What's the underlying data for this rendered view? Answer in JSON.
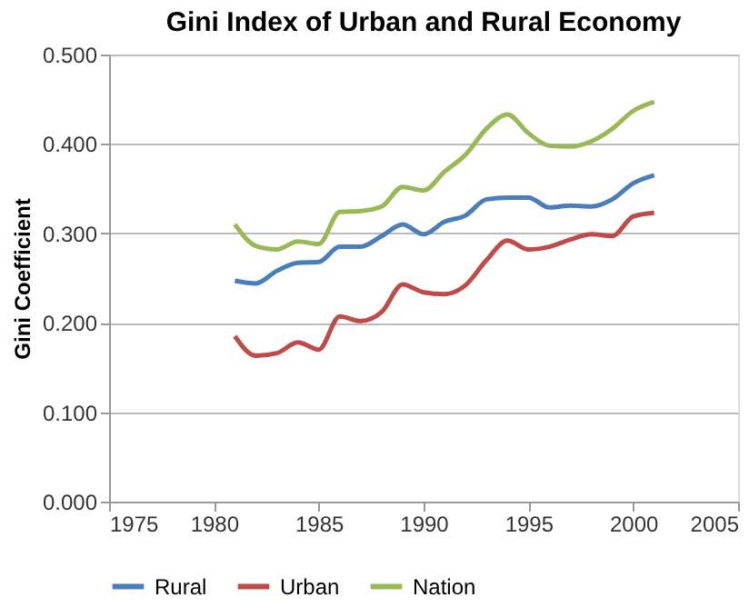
{
  "chart_data": {
    "type": "line",
    "title": "Gini Index of Urban and Rural Economy",
    "ylabel": "Gini Coefficient",
    "x": [
      1981,
      1982,
      1983,
      1984,
      1985,
      1986,
      1987,
      1988,
      1989,
      1990,
      1991,
      1992,
      1993,
      1994,
      1995,
      1996,
      1997,
      1998,
      1999,
      2000,
      2001
    ],
    "series": [
      {
        "name": "Rural",
        "color": "#4a7ebb",
        "values": [
          0.247,
          0.244,
          0.258,
          0.267,
          0.268,
          0.285,
          0.285,
          0.297,
          0.31,
          0.299,
          0.313,
          0.32,
          0.338,
          0.34,
          0.34,
          0.329,
          0.331,
          0.33,
          0.338,
          0.356,
          0.365
        ]
      },
      {
        "name": "Urban",
        "color": "#be4b48",
        "values": [
          0.185,
          0.163,
          0.166,
          0.178,
          0.17,
          0.207,
          0.202,
          0.212,
          0.243,
          0.234,
          0.232,
          0.242,
          0.27,
          0.292,
          0.282,
          0.285,
          0.293,
          0.299,
          0.297,
          0.319,
          0.323
        ]
      },
      {
        "name": "Nation",
        "color": "#98b954",
        "values": [
          0.31,
          0.286,
          0.282,
          0.291,
          0.288,
          0.324,
          0.325,
          0.33,
          0.352,
          0.348,
          0.369,
          0.388,
          0.417,
          0.433,
          0.412,
          0.398,
          0.397,
          0.403,
          0.417,
          0.437,
          0.447
        ]
      }
    ],
    "xlim": [
      1975,
      2005
    ],
    "xticks": [
      1975,
      1980,
      1985,
      1990,
      1995,
      2000,
      2005
    ],
    "ylim": [
      0,
      0.5
    ],
    "yticks": [
      {
        "value": 0,
        "label": "0.000"
      },
      {
        "value": 0.1,
        "label": "0.100"
      },
      {
        "value": 0.2,
        "label": "0.200"
      },
      {
        "value": 0.3,
        "label": "0.300"
      },
      {
        "value": 0.4,
        "label": "0.400"
      },
      {
        "value": 0.5,
        "label": "0.500"
      }
    ],
    "grid": "y",
    "legend": "bottom",
    "marker": "none",
    "line_style": "solid"
  }
}
